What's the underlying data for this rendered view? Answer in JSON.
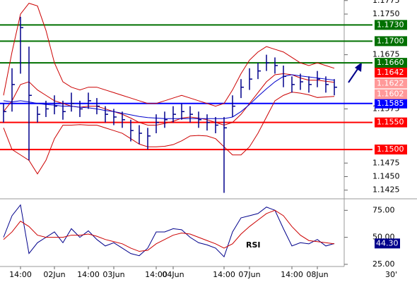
{
  "chart_data": [
    {
      "type": "ohlc",
      "ylim": [
        1.1409,
        1.1776
      ],
      "yticks": [
        {
          "value": 1.1775,
          "label": "1.1775"
        },
        {
          "value": 1.175,
          "label": "1.1750"
        },
        {
          "value": 1.1675,
          "label": "1.1675"
        },
        {
          "value": 1.1575,
          "label": "1.1575"
        },
        {
          "value": 1.1475,
          "label": "1.1475"
        },
        {
          "value": 1.145,
          "label": "1.1450"
        },
        {
          "value": 1.1425,
          "label": "1.1425"
        }
      ],
      "bar_color": "#00008b",
      "high": [
        1.1585,
        1.165,
        1.1745,
        1.169,
        1.158,
        1.159,
        1.16,
        1.159,
        1.1605,
        1.159,
        1.1605,
        1.1595,
        1.158,
        1.1575,
        1.157,
        1.1555,
        1.1545,
        1.154,
        1.1565,
        1.157,
        1.158,
        1.1585,
        1.158,
        1.157,
        1.1565,
        1.156,
        1.156,
        1.16,
        1.163,
        1.165,
        1.166,
        1.1675,
        1.167,
        1.1655,
        1.1635,
        1.164,
        1.1635,
        1.1645,
        1.1635,
        1.163
      ],
      "low": [
        1.155,
        1.157,
        1.164,
        1.148,
        1.155,
        1.156,
        1.1565,
        1.1555,
        1.157,
        1.156,
        1.1575,
        1.1565,
        1.155,
        1.1545,
        1.154,
        1.1515,
        1.151,
        1.15,
        1.153,
        1.154,
        1.155,
        1.1555,
        1.155,
        1.154,
        1.1535,
        1.153,
        1.142,
        1.156,
        1.1595,
        1.161,
        1.163,
        1.1645,
        1.164,
        1.1615,
        1.1605,
        1.161,
        1.1605,
        1.1615,
        1.1605,
        1.16
      ],
      "close": [
        1.157,
        1.162,
        1.1725,
        1.16,
        1.1565,
        1.1575,
        1.158,
        1.157,
        1.1585,
        1.1575,
        1.159,
        1.158,
        1.1565,
        1.156,
        1.1555,
        1.1535,
        1.153,
        1.1525,
        1.155,
        1.1555,
        1.1565,
        1.157,
        1.1565,
        1.1555,
        1.155,
        1.1545,
        1.154,
        1.158,
        1.1615,
        1.163,
        1.1645,
        1.166,
        1.1655,
        1.1635,
        1.162,
        1.1625,
        1.162,
        1.163,
        1.162,
        1.1615
      ],
      "series": [
        {
          "color": "#cc0000",
          "values": [
            1.16,
            1.168,
            1.175,
            1.177,
            1.1765,
            1.172,
            1.166,
            1.1625,
            1.1615,
            1.161,
            1.1615,
            1.1615,
            1.161,
            1.1605,
            1.16,
            1.1595,
            1.159,
            1.1585,
            1.1585,
            1.159,
            1.1595,
            1.16,
            1.1595,
            1.159,
            1.1585,
            1.158,
            1.1585,
            1.161,
            1.164,
            1.1665,
            1.168,
            1.169,
            1.1685,
            1.168,
            1.167,
            1.166,
            1.1655,
            1.166,
            1.1655,
            1.165
          ]
        },
        {
          "color": "#cc0000",
          "values": [
            1.157,
            1.159,
            1.162,
            1.1625,
            1.161,
            1.16,
            1.159,
            1.1585,
            1.158,
            1.1578,
            1.158,
            1.158,
            1.1575,
            1.157,
            1.1565,
            1.1558,
            1.155,
            1.1545,
            1.1545,
            1.1548,
            1.1552,
            1.1558,
            1.156,
            1.1558,
            1.1555,
            1.155,
            1.1545,
            1.155,
            1.1565,
            1.1585,
            1.1605,
            1.1625,
            1.1638,
            1.164,
            1.1638,
            1.1632,
            1.1628,
            1.1628,
            1.1626,
            1.1624
          ]
        },
        {
          "color": "#cc0000",
          "values": [
            1.154,
            1.15,
            1.149,
            1.148,
            1.1455,
            1.148,
            1.152,
            1.1545,
            1.1545,
            1.1546,
            1.1545,
            1.1545,
            1.154,
            1.1535,
            1.153,
            1.152,
            1.151,
            1.1505,
            1.1505,
            1.1506,
            1.1509,
            1.1516,
            1.1525,
            1.1526,
            1.1525,
            1.152,
            1.1505,
            1.149,
            1.149,
            1.1505,
            1.153,
            1.156,
            1.159,
            1.16,
            1.1606,
            1.1604,
            1.1601,
            1.1596,
            1.1597,
            1.1598
          ]
        },
        {
          "color": "#0000cc",
          "values": [
            1.159,
            1.1588,
            1.159,
            1.1588,
            1.1585,
            1.1583,
            1.1582,
            1.158,
            1.158,
            1.1578,
            1.1577,
            1.1575,
            1.1572,
            1.157,
            1.1567,
            1.1564,
            1.1561,
            1.1559,
            1.1558,
            1.1557,
            1.1557,
            1.1557,
            1.1557,
            1.1557,
            1.1557,
            1.1557,
            1.1557,
            1.156,
            1.157,
            1.1583,
            1.1598,
            1.1612,
            1.1625,
            1.1635,
            1.1638,
            1.1636,
            1.1634,
            1.1632,
            1.163,
            1.1628
          ]
        }
      ],
      "levels": [
        {
          "value": 1.173,
          "label": "1.1730",
          "color": "#007000"
        },
        {
          "value": 1.17,
          "label": "1.1700",
          "color": "#007000"
        },
        {
          "value": 1.166,
          "label": "1.1660",
          "color": "#007000"
        },
        {
          "value": 1.1585,
          "label": "1.1585",
          "color": "#0000ff"
        },
        {
          "value": 1.155,
          "label": "1.1550",
          "color": "#ff0000"
        },
        {
          "value": 1.15,
          "label": "1.1500",
          "color": "#ff0000"
        }
      ],
      "price_tags": [
        {
          "value": 1.1642,
          "label": "1.1642",
          "color": "#ff0000"
        },
        {
          "value": 1.1622,
          "label": "1.1622",
          "color": "#ff9999"
        },
        {
          "value": 1.1602,
          "label": "1.1602",
          "color": "#ff9999"
        }
      ]
    },
    {
      "type": "line",
      "ylim": [
        23,
        85
      ],
      "yticks": [
        {
          "value": 75,
          "label": "75.00"
        },
        {
          "value": 50,
          "label": "50.00"
        },
        {
          "value": 25,
          "label": "25.00"
        }
      ],
      "categories": [
        null,
        null,
        "14:00",
        null,
        null,
        null,
        "02Jun",
        null,
        null,
        null,
        "14:00",
        null,
        null,
        "03Jun",
        null,
        null,
        null,
        null,
        "14:00",
        null,
        "04Jun",
        null,
        null,
        null,
        null,
        null,
        "14:00",
        null,
        null,
        "07Jun",
        null,
        null,
        null,
        null,
        "14:00",
        null,
        null,
        "08Jun",
        null,
        null
      ],
      "timeframe": "30'",
      "series": [
        {
          "name": "RSI",
          "color": "#00008b",
          "values": [
            50,
            70,
            80,
            35,
            45,
            50,
            55,
            45,
            58,
            50,
            56,
            48,
            42,
            45,
            40,
            35,
            33,
            40,
            55,
            55,
            58,
            57,
            50,
            45,
            43,
            40,
            32,
            55,
            68,
            70,
            72,
            78,
            75,
            58,
            42,
            45,
            44,
            48,
            42,
            44.3
          ]
        },
        {
          "color": "#cc0000",
          "values": [
            48,
            55,
            65,
            60,
            52,
            50,
            50,
            50,
            52,
            52,
            53,
            51,
            48,
            46,
            44,
            40,
            37,
            38,
            44,
            48,
            52,
            54,
            53,
            50,
            47,
            44,
            40,
            44,
            53,
            60,
            66,
            72,
            75,
            70,
            60,
            52,
            47,
            46,
            45,
            44
          ]
        }
      ],
      "current": {
        "value": 44.3,
        "label": "44.30",
        "color": "#00008b"
      }
    }
  ]
}
